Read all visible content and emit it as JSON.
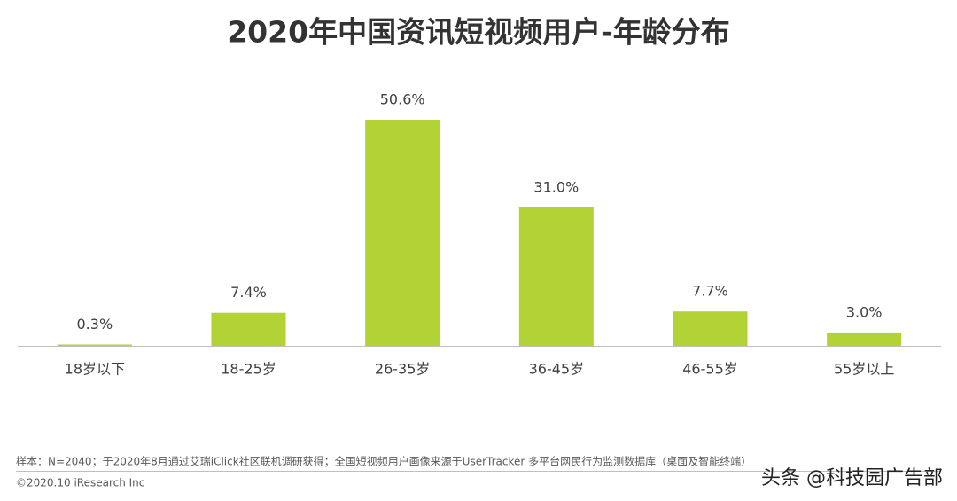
{
  "chart_data": {
    "type": "bar",
    "title": "2020年中国资讯短视频用户-年龄分布",
    "categories": [
      "18岁以下",
      "18-25岁",
      "26-35岁",
      "36-45岁",
      "46-55岁",
      "55岁以上"
    ],
    "values": [
      0.3,
      7.4,
      50.6,
      31.0,
      7.7,
      3.0
    ],
    "value_labels": [
      "0.3%",
      "7.4%",
      "50.6%",
      "31.0%",
      "7.7%",
      "3.0%"
    ],
    "color": "#b3d235"
  },
  "footnote": "样本：N=2040；于2020年8月通过艾瑞iClick社区联机调研获得；全国短视频用户画像来源于UserTracker 多平台网民行为监测数据库（桌面及智能终端）",
  "copyright": "©2020.10 iResearch Inc",
  "watermark": "头条 @科技园广告部"
}
